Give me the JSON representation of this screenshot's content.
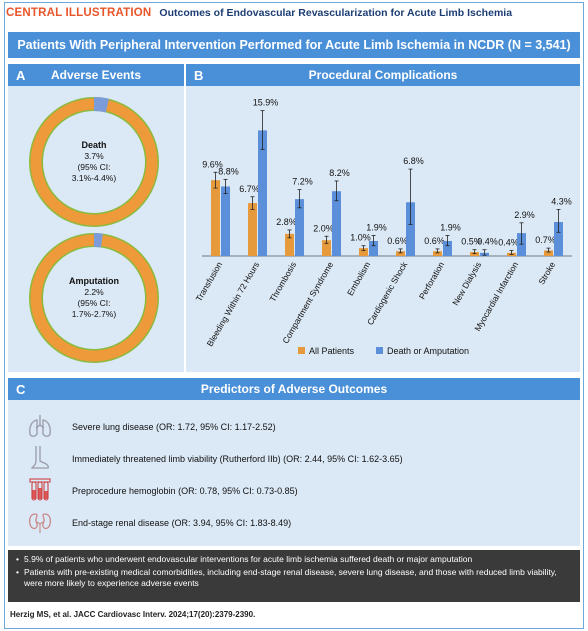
{
  "header": {
    "tag": "CENTRAL ILLUSTRATION",
    "title": "Outcomes of Endovascular Revascularization for Acute Limb Ischemia"
  },
  "banner": "Patients With Peripheral Intervention Performed for Acute Limb Ischemia in NCDR (N = 3,541)",
  "panel_a": {
    "letter": "A",
    "title": "Adverse Events",
    "death": {
      "label": "Death",
      "value": "3.7%",
      "ci": "(95% CI: 3.1%-4.4%)",
      "pct": 3.7
    },
    "amputation": {
      "label": "Amputation",
      "value": "2.2%",
      "ci": "(95% CI: 1.7%-2.7%)",
      "pct": 2.2
    },
    "colors": {
      "main": "#ee9a3a",
      "event": "#7b9cd8",
      "base": "#8cba3e"
    }
  },
  "panel_b": {
    "letter": "B",
    "title": "Procedural Complications"
  },
  "chart_data": {
    "type": "bar",
    "categories": [
      "Transfusion",
      "Bleeding Within 72 Hours",
      "Thrombosis",
      "Compartment Syndrome",
      "Embolism",
      "Cardiogenic Shock",
      "Perforation",
      "New Dialysis",
      "Myocardial Infarction",
      "Stroke"
    ],
    "series": [
      {
        "name": "All Patients",
        "color": "#e69a3c",
        "values": [
          9.6,
          6.7,
          2.8,
          2.0,
          1.0,
          0.6,
          0.6,
          0.5,
          0.4,
          0.7
        ],
        "labels": [
          "9.6%",
          "6.7%",
          "2.8%",
          "2.0%",
          "1.0%",
          "0.6%",
          "0.6%",
          "0.5%",
          "0.4%",
          "0.7%"
        ],
        "err_low": [
          8.6,
          5.9,
          2.3,
          1.6,
          0.7,
          0.4,
          0.4,
          0.3,
          0.2,
          0.5
        ],
        "err_high": [
          10.6,
          7.5,
          3.3,
          2.5,
          1.3,
          0.9,
          0.9,
          0.8,
          0.7,
          1.0
        ]
      },
      {
        "name": "Death or Amputation",
        "color": "#5b8fd9",
        "values": [
          8.8,
          15.9,
          7.2,
          8.2,
          1.9,
          6.8,
          1.9,
          0.4,
          2.9,
          4.3
        ],
        "labels": [
          "8.8%",
          "15.9%",
          "7.2%",
          "8.2%",
          "1.9%",
          "6.8%",
          "1.9%",
          "0.4%",
          "2.9%",
          "4.3%"
        ],
        "err_low": [
          7.9,
          13.5,
          6.1,
          7.0,
          1.3,
          4.0,
          1.3,
          0.1,
          1.5,
          3.0
        ],
        "err_high": [
          9.7,
          18.4,
          8.4,
          9.5,
          2.6,
          11.0,
          2.6,
          0.8,
          4.2,
          5.9
        ]
      }
    ],
    "ylim": [
      0,
      20
    ],
    "legend": "bottom"
  },
  "panel_c": {
    "letter": "C",
    "title": "Predictors of Adverse Outcomes",
    "items": [
      {
        "icon": "lungs-icon",
        "text": "Severe lung disease (OR: 1.72, 95% CI: 1.17-2.52)"
      },
      {
        "icon": "foot-icon",
        "text": "Immediately threatened limb viability (Rutherford IIb) (OR: 2.44, 95% CI: 1.62-3.65)"
      },
      {
        "icon": "blood-tubes-icon",
        "text": "Preprocedure hemoglobin (OR: 0.78, 95% CI: 0.73-0.85)"
      },
      {
        "icon": "kidneys-icon",
        "text": "End-stage renal disease (OR: 3.94, 95% CI: 1.83-8.49)"
      }
    ]
  },
  "summary": [
    "5.9% of patients who underwent endovascular interventions for acute limb ischemia suffered death or major amputation",
    "Patients with pre-existing medical comorbidities, including end-stage renal disease, severe lung disease, and those with reduced limb viability, were more likely to experience adverse events"
  ],
  "citation": "Herzig MS, et al. JACC Cardiovasc Interv. 2024;17(20):2379-2390."
}
